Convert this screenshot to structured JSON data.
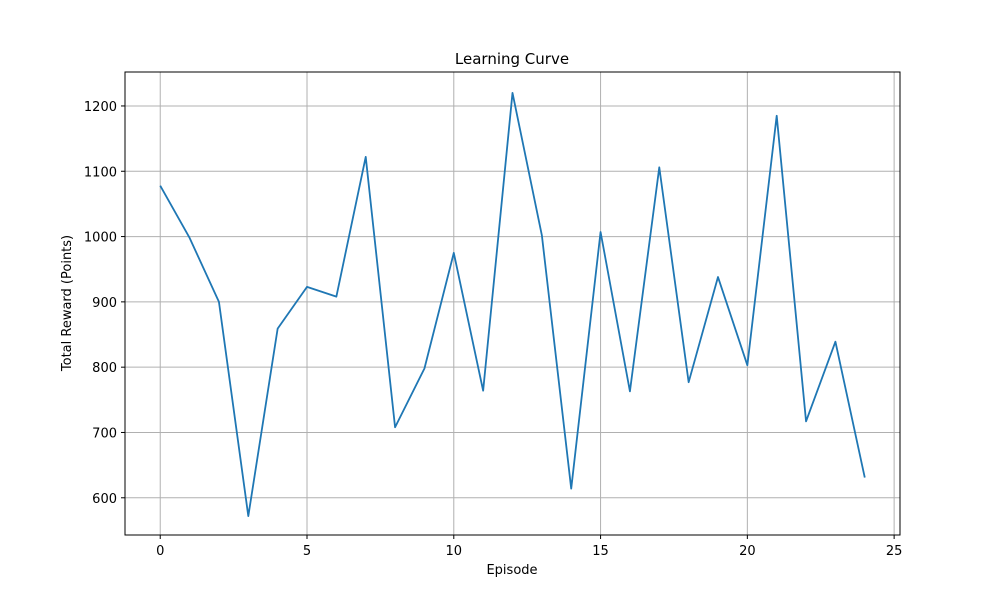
{
  "chart_data": {
    "type": "line",
    "title": "Learning Curve",
    "xlabel": "Episode",
    "ylabel": "Total Reward (Points)",
    "xlim": [
      -1.2,
      25.2
    ],
    "ylim": [
      543,
      1252
    ],
    "xticks": [
      0,
      5,
      10,
      15,
      20,
      25
    ],
    "yticks": [
      600,
      700,
      800,
      900,
      1000,
      1100,
      1200
    ],
    "grid": true,
    "series": [
      {
        "color": "#1f77b4",
        "x": [
          0,
          1,
          2,
          3,
          4,
          5,
          6,
          7,
          8,
          9,
          10,
          11,
          12,
          13,
          14,
          15,
          16,
          17,
          18,
          19,
          20,
          21,
          22,
          23,
          24
        ],
        "values": [
          1078,
          998,
          900,
          572,
          859,
          923,
          908,
          1122,
          708,
          798,
          975,
          764,
          1220,
          1002,
          614,
          1007,
          763,
          1106,
          777,
          938,
          803,
          1185,
          717,
          839,
          631
        ]
      }
    ]
  }
}
